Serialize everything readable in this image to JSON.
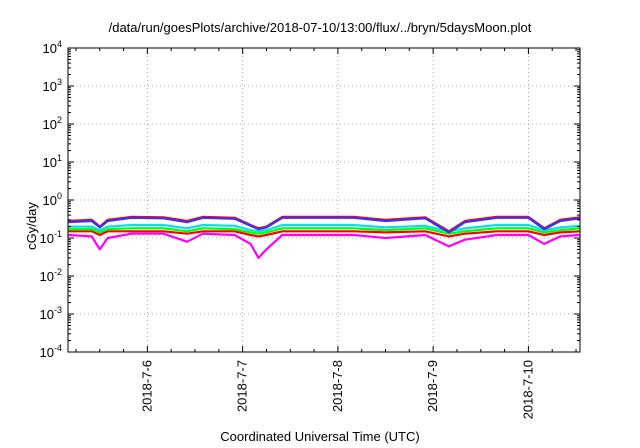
{
  "chart_data": {
    "type": "line",
    "title": "/data/run/goesPlots/archive/2018-07-10/13:00/flux/../bryn/5daysMoon.plot",
    "xlabel": "Coordinated Universal Time (UTC)",
    "ylabel": "cGy/day",
    "yscale": "log",
    "ylim": [
      0.0001,
      10000
    ],
    "y_ticks": [
      {
        "base": "10",
        "exp": "-4"
      },
      {
        "base": "10",
        "exp": "-3"
      },
      {
        "base": "10",
        "exp": "-2"
      },
      {
        "base": "10",
        "exp": "-1"
      },
      {
        "base": "10",
        "exp": "0"
      },
      {
        "base": "10",
        "exp": "1"
      },
      {
        "base": "10",
        "exp": "2"
      },
      {
        "base": "10",
        "exp": "3"
      },
      {
        "base": "10",
        "exp": "4"
      }
    ],
    "xlim": [
      "2018-07-05 04:00",
      "2018-07-10 13:00"
    ],
    "x_ticks": [
      "2018-7-6",
      "2018-7-7",
      "2018-7-8",
      "2018-7-9",
      "2018-7-10"
    ],
    "grid": true,
    "series": [
      {
        "color": "#ff00ff",
        "values": [
          [
            "2018-07-05 04:00",
            0.12
          ],
          [
            "2018-07-05 10:00",
            0.11
          ],
          [
            "2018-07-05 12:00",
            0.05
          ],
          [
            "2018-07-05 14:00",
            0.1
          ],
          [
            "2018-07-05 20:00",
            0.13
          ],
          [
            "2018-07-06 04:00",
            0.13
          ],
          [
            "2018-07-06 10:00",
            0.08
          ],
          [
            "2018-07-06 14:00",
            0.13
          ],
          [
            "2018-07-06 22:00",
            0.12
          ],
          [
            "2018-07-07 02:00",
            0.07
          ],
          [
            "2018-07-07 04:00",
            0.03
          ],
          [
            "2018-07-07 06:00",
            0.05
          ],
          [
            "2018-07-07 10:00",
            0.12
          ],
          [
            "2018-07-07 20:00",
            0.12
          ],
          [
            "2018-07-08 04:00",
            0.12
          ],
          [
            "2018-07-08 12:00",
            0.1
          ],
          [
            "2018-07-08 22:00",
            0.12
          ],
          [
            "2018-07-09 04:00",
            0.06
          ],
          [
            "2018-07-09 08:00",
            0.09
          ],
          [
            "2018-07-09 16:00",
            0.12
          ],
          [
            "2018-07-10 00:00",
            0.12
          ],
          [
            "2018-07-10 04:00",
            0.07
          ],
          [
            "2018-07-10 08:00",
            0.11
          ],
          [
            "2018-07-10 13:00",
            0.12
          ]
        ]
      },
      {
        "color": "#ff0000",
        "values": [
          [
            "2018-07-05 04:00",
            0.15
          ],
          [
            "2018-07-05 10:00",
            0.15
          ],
          [
            "2018-07-05 12:00",
            0.12
          ],
          [
            "2018-07-05 14:00",
            0.15
          ],
          [
            "2018-07-05 20:00",
            0.15
          ],
          [
            "2018-07-06 04:00",
            0.15
          ],
          [
            "2018-07-06 10:00",
            0.13
          ],
          [
            "2018-07-06 14:00",
            0.15
          ],
          [
            "2018-07-06 22:00",
            0.15
          ],
          [
            "2018-07-07 02:00",
            0.12
          ],
          [
            "2018-07-07 04:00",
            0.11
          ],
          [
            "2018-07-07 06:00",
            0.12
          ],
          [
            "2018-07-07 10:00",
            0.15
          ],
          [
            "2018-07-07 20:00",
            0.15
          ],
          [
            "2018-07-08 04:00",
            0.15
          ],
          [
            "2018-07-08 12:00",
            0.14
          ],
          [
            "2018-07-08 22:00",
            0.15
          ],
          [
            "2018-07-09 04:00",
            0.11
          ],
          [
            "2018-07-09 08:00",
            0.13
          ],
          [
            "2018-07-09 16:00",
            0.15
          ],
          [
            "2018-07-10 00:00",
            0.15
          ],
          [
            "2018-07-10 04:00",
            0.12
          ],
          [
            "2018-07-10 08:00",
            0.14
          ],
          [
            "2018-07-10 13:00",
            0.15
          ]
        ]
      },
      {
        "color": "#00ff00",
        "values": [
          [
            "2018-07-05 04:00",
            0.17
          ],
          [
            "2018-07-05 10:00",
            0.17
          ],
          [
            "2018-07-05 12:00",
            0.14
          ],
          [
            "2018-07-05 14:00",
            0.17
          ],
          [
            "2018-07-05 20:00",
            0.18
          ],
          [
            "2018-07-06 04:00",
            0.18
          ],
          [
            "2018-07-06 10:00",
            0.15
          ],
          [
            "2018-07-06 14:00",
            0.18
          ],
          [
            "2018-07-06 22:00",
            0.17
          ],
          [
            "2018-07-07 02:00",
            0.14
          ],
          [
            "2018-07-07 04:00",
            0.13
          ],
          [
            "2018-07-07 06:00",
            0.14
          ],
          [
            "2018-07-07 10:00",
            0.18
          ],
          [
            "2018-07-07 20:00",
            0.18
          ],
          [
            "2018-07-08 04:00",
            0.18
          ],
          [
            "2018-07-08 12:00",
            0.16
          ],
          [
            "2018-07-08 22:00",
            0.18
          ],
          [
            "2018-07-09 04:00",
            0.13
          ],
          [
            "2018-07-09 08:00",
            0.15
          ],
          [
            "2018-07-09 16:00",
            0.18
          ],
          [
            "2018-07-10 00:00",
            0.18
          ],
          [
            "2018-07-10 04:00",
            0.14
          ],
          [
            "2018-07-10 08:00",
            0.16
          ],
          [
            "2018-07-10 13:00",
            0.18
          ]
        ]
      },
      {
        "color": "#00e5e5",
        "values": [
          [
            "2018-07-05 04:00",
            0.2
          ],
          [
            "2018-07-05 10:00",
            0.2
          ],
          [
            "2018-07-05 12:00",
            0.16
          ],
          [
            "2018-07-05 14:00",
            0.2
          ],
          [
            "2018-07-05 20:00",
            0.22
          ],
          [
            "2018-07-06 04:00",
            0.22
          ],
          [
            "2018-07-06 10:00",
            0.18
          ],
          [
            "2018-07-06 14:00",
            0.22
          ],
          [
            "2018-07-06 22:00",
            0.21
          ],
          [
            "2018-07-07 02:00",
            0.16
          ],
          [
            "2018-07-07 04:00",
            0.15
          ],
          [
            "2018-07-07 06:00",
            0.16
          ],
          [
            "2018-07-07 10:00",
            0.22
          ],
          [
            "2018-07-07 20:00",
            0.22
          ],
          [
            "2018-07-08 04:00",
            0.22
          ],
          [
            "2018-07-08 12:00",
            0.19
          ],
          [
            "2018-07-08 22:00",
            0.21
          ],
          [
            "2018-07-09 04:00",
            0.15
          ],
          [
            "2018-07-09 08:00",
            0.18
          ],
          [
            "2018-07-09 16:00",
            0.22
          ],
          [
            "2018-07-10 00:00",
            0.22
          ],
          [
            "2018-07-10 04:00",
            0.16
          ],
          [
            "2018-07-10 08:00",
            0.19
          ],
          [
            "2018-07-10 13:00",
            0.21
          ]
        ]
      },
      {
        "color": "#ff0000",
        "values": [
          [
            "2018-07-05 04:00",
            0.28
          ],
          [
            "2018-07-05 10:00",
            0.3
          ],
          [
            "2018-07-05 12:00",
            0.2
          ],
          [
            "2018-07-05 14:00",
            0.3
          ],
          [
            "2018-07-05 20:00",
            0.36
          ],
          [
            "2018-07-06 04:00",
            0.35
          ],
          [
            "2018-07-06 10:00",
            0.28
          ],
          [
            "2018-07-06 14:00",
            0.36
          ],
          [
            "2018-07-06 22:00",
            0.34
          ],
          [
            "2018-07-07 02:00",
            0.22
          ],
          [
            "2018-07-07 04:00",
            0.18
          ],
          [
            "2018-07-07 06:00",
            0.2
          ],
          [
            "2018-07-07 10:00",
            0.36
          ],
          [
            "2018-07-07 20:00",
            0.36
          ],
          [
            "2018-07-08 04:00",
            0.36
          ],
          [
            "2018-07-08 12:00",
            0.3
          ],
          [
            "2018-07-08 22:00",
            0.35
          ],
          [
            "2018-07-09 04:00",
            0.15
          ],
          [
            "2018-07-09 08:00",
            0.28
          ],
          [
            "2018-07-09 16:00",
            0.36
          ],
          [
            "2018-07-10 00:00",
            0.36
          ],
          [
            "2018-07-10 04:00",
            0.18
          ],
          [
            "2018-07-10 08:00",
            0.3
          ],
          [
            "2018-07-10 13:00",
            0.35
          ]
        ]
      },
      {
        "color": "#3333ff",
        "values": [
          [
            "2018-07-05 04:00",
            0.26
          ],
          [
            "2018-07-05 10:00",
            0.28
          ],
          [
            "2018-07-05 12:00",
            0.19
          ],
          [
            "2018-07-05 14:00",
            0.28
          ],
          [
            "2018-07-05 20:00",
            0.34
          ],
          [
            "2018-07-06 04:00",
            0.33
          ],
          [
            "2018-07-06 10:00",
            0.26
          ],
          [
            "2018-07-06 14:00",
            0.34
          ],
          [
            "2018-07-06 22:00",
            0.32
          ],
          [
            "2018-07-07 02:00",
            0.21
          ],
          [
            "2018-07-07 04:00",
            0.17
          ],
          [
            "2018-07-07 06:00",
            0.19
          ],
          [
            "2018-07-07 10:00",
            0.34
          ],
          [
            "2018-07-07 20:00",
            0.34
          ],
          [
            "2018-07-08 04:00",
            0.34
          ],
          [
            "2018-07-08 12:00",
            0.28
          ],
          [
            "2018-07-08 22:00",
            0.33
          ],
          [
            "2018-07-09 04:00",
            0.14
          ],
          [
            "2018-07-09 08:00",
            0.26
          ],
          [
            "2018-07-09 16:00",
            0.34
          ],
          [
            "2018-07-10 00:00",
            0.34
          ],
          [
            "2018-07-10 04:00",
            0.17
          ],
          [
            "2018-07-10 08:00",
            0.28
          ],
          [
            "2018-07-10 13:00",
            0.33
          ]
        ]
      }
    ]
  }
}
